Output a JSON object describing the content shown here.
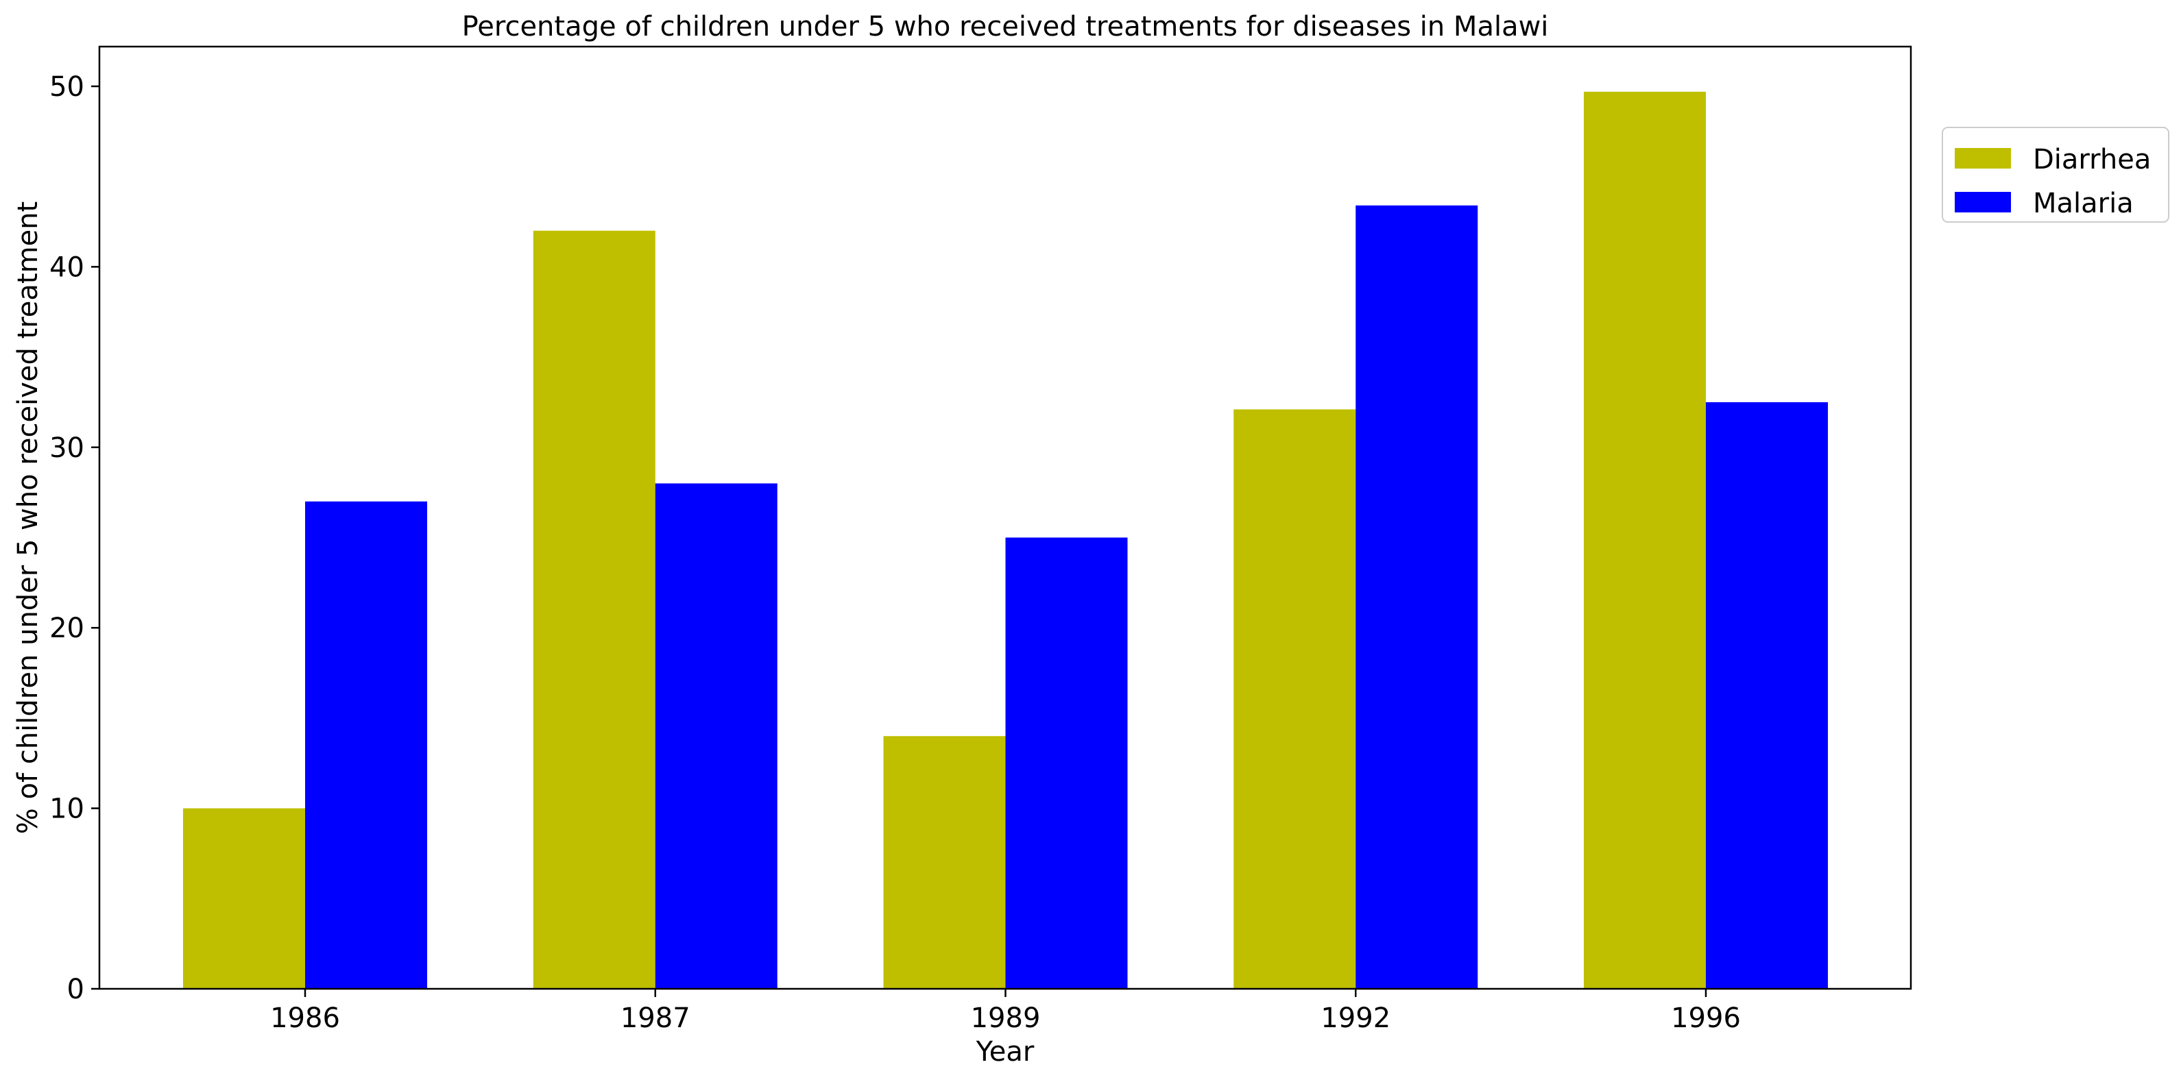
{
  "chart_data": {
    "type": "bar",
    "title": "Percentage of children under 5 who received treatments for diseases in Malawi",
    "xlabel": "Year",
    "ylabel": "% of children under 5 who received treatment",
    "categories": [
      "1986",
      "1987",
      "1989",
      "1992",
      "1996"
    ],
    "series": [
      {
        "name": "Diarrhea",
        "color": "#bfbf00",
        "values": [
          10,
          42,
          14,
          32.1,
          49.7
        ]
      },
      {
        "name": "Malaria",
        "color": "#0000ff",
        "values": [
          27,
          28,
          25,
          43.4,
          32.5
        ]
      }
    ],
    "ylim": [
      0,
      52.2
    ],
    "yticks": [
      0,
      10,
      20,
      30,
      40,
      50
    ],
    "grid": false,
    "legend_position": "upper-right-outside"
  }
}
